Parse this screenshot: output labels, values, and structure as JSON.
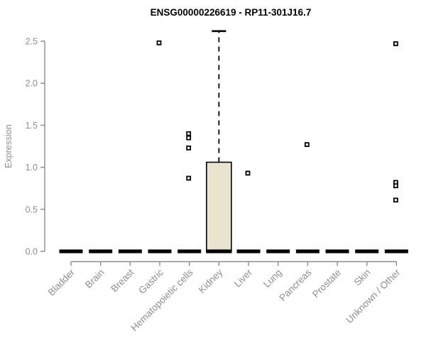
{
  "chart_data": {
    "type": "boxplot",
    "title": "ENSG00000226619 - RP11-301J16.7",
    "ylabel": "Expression",
    "xlabel": "",
    "ylim": [
      0,
      2.5
    ],
    "yticks": [
      "0.0",
      "0.5",
      "1.0",
      "1.5",
      "2.0",
      "2.5"
    ],
    "grid": "off",
    "legend": "none",
    "categories": [
      "Bladder",
      "Brain",
      "Breast",
      "Gastric",
      "Hematopoietic cells",
      "Kidney",
      "Liver",
      "Lung",
      "Pancreas",
      "Prostate",
      "Skin",
      "Unknown / Other"
    ],
    "boxes": [
      {
        "category": "Bladder",
        "whisker_low": 0,
        "q1": 0,
        "median": 0,
        "q3": 0,
        "whisker_high": 0,
        "outliers": []
      },
      {
        "category": "Brain",
        "whisker_low": 0,
        "q1": 0,
        "median": 0,
        "q3": 0,
        "whisker_high": 0,
        "outliers": []
      },
      {
        "category": "Breast",
        "whisker_low": 0,
        "q1": 0,
        "median": 0,
        "q3": 0,
        "whisker_high": 0,
        "outliers": []
      },
      {
        "category": "Gastric",
        "whisker_low": 0,
        "q1": 0,
        "median": 0,
        "q3": 0,
        "whisker_high": 0,
        "outliers": [
          2.48
        ]
      },
      {
        "category": "Hematopoietic cells",
        "whisker_low": 0,
        "q1": 0,
        "median": 0,
        "q3": 0,
        "whisker_high": 0,
        "outliers": [
          1.4,
          1.35,
          1.23,
          0.87
        ]
      },
      {
        "category": "Kidney",
        "whisker_low": 0,
        "q1": 0,
        "median": 0,
        "q3": 1.06,
        "whisker_high": 2.62,
        "outliers": []
      },
      {
        "category": "Liver",
        "whisker_low": 0,
        "q1": 0,
        "median": 0,
        "q3": 0,
        "whisker_high": 0,
        "outliers": [
          0.93
        ]
      },
      {
        "category": "Lung",
        "whisker_low": 0,
        "q1": 0,
        "median": 0,
        "q3": 0,
        "whisker_high": 0,
        "outliers": []
      },
      {
        "category": "Pancreas",
        "whisker_low": 0,
        "q1": 0,
        "median": 0,
        "q3": 0,
        "whisker_high": 0,
        "outliers": [
          1.27
        ]
      },
      {
        "category": "Prostate",
        "whisker_low": 0,
        "q1": 0,
        "median": 0,
        "q3": 0,
        "whisker_high": 0,
        "outliers": []
      },
      {
        "category": "Skin",
        "whisker_low": 0,
        "q1": 0,
        "median": 0,
        "q3": 0,
        "whisker_high": 0,
        "outliers": []
      },
      {
        "category": "Unknown / Other",
        "whisker_low": 0,
        "q1": 0,
        "median": 0,
        "q3": 0,
        "whisker_high": 0,
        "outliers": [
          2.47,
          0.82,
          0.78,
          0.61
        ]
      }
    ],
    "colors": {
      "background": "#FFFFFF",
      "box_fill": "#E9E4CE",
      "box_border": "#000000",
      "median": "#000000",
      "whisker": "#000000",
      "outlier_border": "#000000",
      "outlier_fill": "#FFFFFF",
      "axis_line": "#8A8A8A",
      "tick_text": "#8F8F8F",
      "title_text": "#000000"
    }
  }
}
